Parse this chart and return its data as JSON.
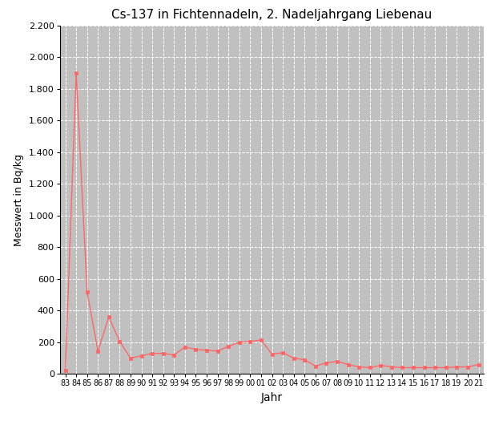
{
  "title": "Cs-137 in Fichtennadeln, 2. Nadeljahrgang Liebenau",
  "xlabel": "Jahr",
  "ylabel": "Messwert in Bq/kg",
  "x_labels": [
    "83",
    "84",
    "85",
    "86",
    "87",
    "88",
    "89",
    "90",
    "91",
    "92",
    "93",
    "94",
    "95",
    "96",
    "97",
    "98",
    "99",
    "00",
    "01",
    "02",
    "03",
    "04",
    "05",
    "06",
    "07",
    "08",
    "09",
    "10",
    "11",
    "12",
    "13",
    "14",
    "15",
    "16",
    "17",
    "18",
    "19",
    "20",
    "21"
  ],
  "x_values": [
    0,
    1,
    2,
    3,
    4,
    5,
    6,
    7,
    8,
    9,
    10,
    11,
    12,
    13,
    14,
    15,
    16,
    17,
    18,
    19,
    20,
    21,
    22,
    23,
    24,
    25,
    26,
    27,
    28,
    29,
    30,
    31,
    32,
    33,
    34,
    35,
    36,
    37,
    38
  ],
  "y_values": [
    20,
    1900,
    520,
    145,
    360,
    205,
    100,
    115,
    130,
    130,
    120,
    170,
    155,
    150,
    145,
    175,
    200,
    205,
    215,
    125,
    135,
    100,
    90,
    50,
    70,
    80,
    60,
    45,
    40,
    55,
    45,
    40,
    40,
    40,
    40,
    40,
    45,
    45,
    60
  ],
  "line_color": "#FF6666",
  "marker": "s",
  "marker_size": 3.5,
  "background_color": "#C0C0C0",
  "fig_background": "#ffffff",
  "grid_color": "#FFFFFF",
  "grid_linestyle": "--",
  "grid_linewidth": 0.7,
  "ylim": [
    0,
    2200
  ],
  "yticks": [
    0,
    200,
    400,
    600,
    800,
    1000,
    1200,
    1400,
    1600,
    1800,
    2000,
    2200
  ],
  "ytick_labels": [
    "0",
    "200",
    "400",
    "600",
    "800",
    "1.000",
    "1.200",
    "1.400",
    "1.600",
    "1.800",
    "2.000",
    "2.200"
  ],
  "title_fontsize": 11,
  "xlabel_fontsize": 10,
  "ylabel_fontsize": 9,
  "xtick_fontsize": 7,
  "ytick_fontsize": 8
}
